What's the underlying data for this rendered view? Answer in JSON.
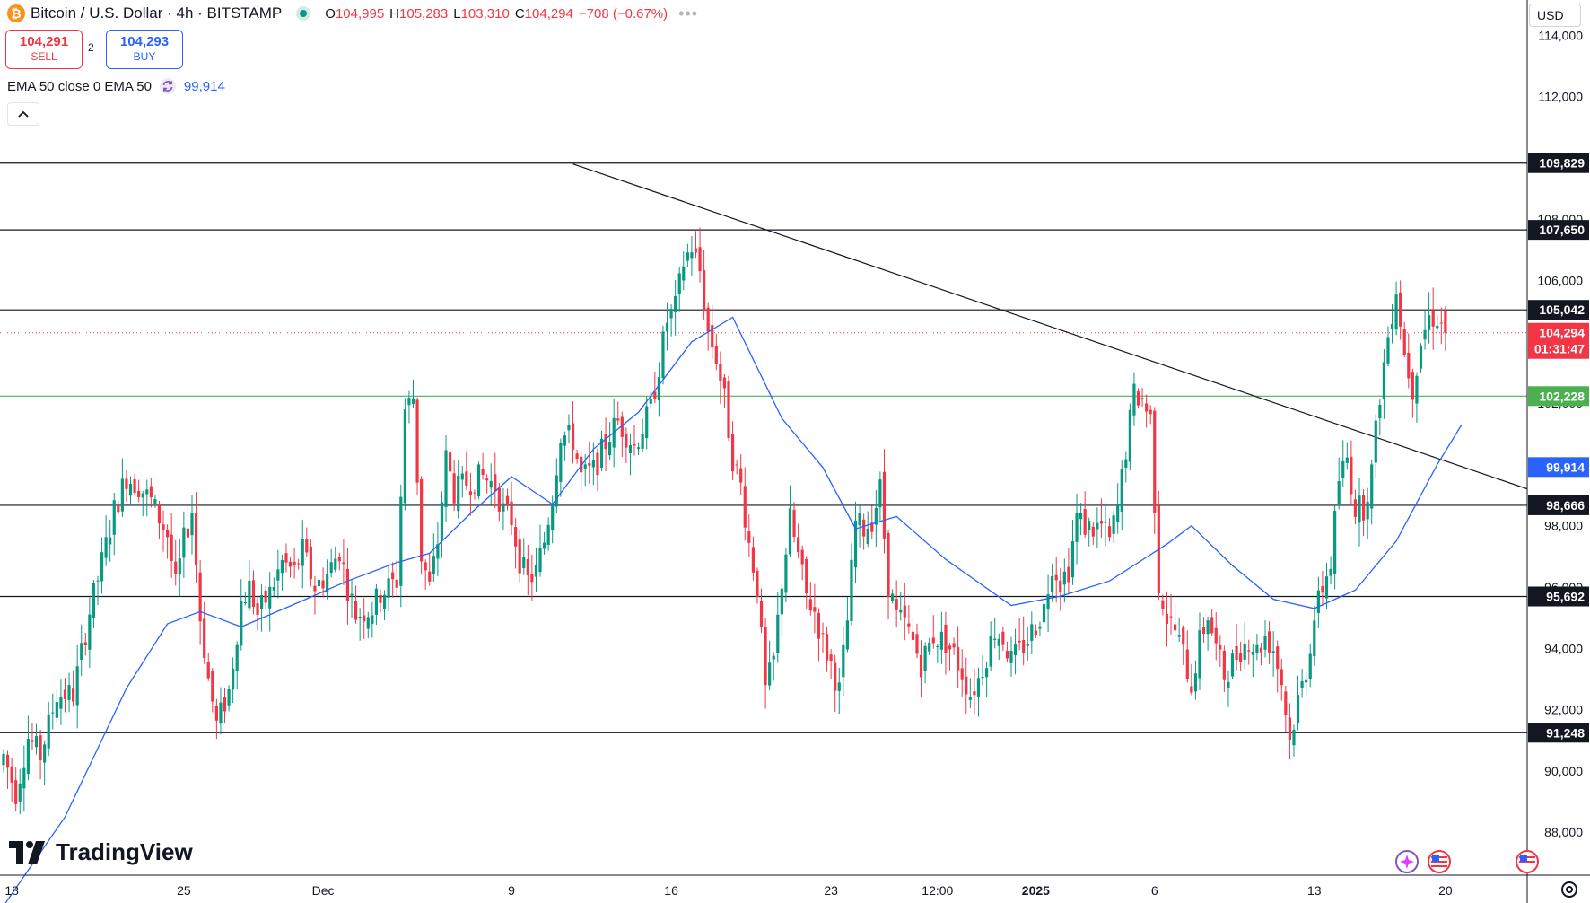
{
  "header": {
    "symbol": "Bitcoin / U.S. Dollar · 4h · BITSTAMP",
    "coin_glyph": "₿",
    "ohlc": [
      {
        "k": "O",
        "v": "104,995"
      },
      {
        "k": "H",
        "v": "105,283"
      },
      {
        "k": "L",
        "v": "103,310"
      },
      {
        "k": "C",
        "v": "104,294"
      }
    ],
    "change": "−708 (−0.67%)",
    "more": "•••"
  },
  "trade": {
    "sell_price": "104,291",
    "sell_label": "SELL",
    "spread": "2",
    "buy_price": "104,293",
    "buy_label": "BUY"
  },
  "indicator": {
    "label": "EMA 50 close 0 EMA 50",
    "value": "99,914"
  },
  "currency": "USD",
  "brand": "TradingView",
  "colors": {
    "up": "#089981",
    "down": "#f23645",
    "ema": "#2962ff",
    "support_green": "#4caf50"
  },
  "chart_data": {
    "type": "candlestick",
    "title": "Bitcoin / U.S. Dollar · 4h · BITSTAMP",
    "ylim": [
      86600,
      115150
    ],
    "y_ticks": [
      "88,000",
      "90,000",
      "92,000",
      "94,000",
      "96,000",
      "98,000",
      "100,000",
      "102,000",
      "104,000",
      "106,000",
      "108,000",
      "110,000",
      "112,000",
      "114,000"
    ],
    "x_labels": [
      {
        "label": "18",
        "bar": 2
      },
      {
        "label": "25",
        "bar": 44
      },
      {
        "label": "Dec",
        "bar": 78
      },
      {
        "label": "9",
        "bar": 124
      },
      {
        "label": "16",
        "bar": 163
      },
      {
        "label": "23",
        "bar": 202
      },
      {
        "label": "12:00",
        "bar": 228
      },
      {
        "label": "2025",
        "bar": 252
      },
      {
        "label": "6",
        "bar": 281
      },
      {
        "label": "13",
        "bar": 320
      },
      {
        "label": "20",
        "bar": 352
      }
    ],
    "levels": [
      {
        "value": 109829,
        "label": "109,829",
        "kind": "resistance"
      },
      {
        "value": 107650,
        "label": "107,650",
        "kind": "resistance"
      },
      {
        "value": 105042,
        "label": "105,042",
        "kind": "resistance"
      },
      {
        "value": 102228,
        "label": "102,228",
        "kind": "support"
      },
      {
        "value": 98666,
        "label": "98,666",
        "kind": "support"
      },
      {
        "value": 95692,
        "label": "95,692",
        "kind": "support"
      },
      {
        "value": 91248,
        "label": "91,248",
        "kind": "support"
      }
    ],
    "trendline": {
      "from": {
        "bar": 139,
        "value": 109800
      },
      "to": {
        "bar": 383,
        "value": 98700
      }
    },
    "last_price": {
      "value": 104294,
      "label": "104,294",
      "countdown": "01:31:47"
    },
    "ema": {
      "name": "EMA 50",
      "value": 99914,
      "label": "99,914",
      "path": [
        [
          0,
          85600
        ],
        [
          15,
          88500
        ],
        [
          30,
          92700
        ],
        [
          40,
          94800
        ],
        [
          48,
          95200
        ],
        [
          58,
          94700
        ],
        [
          72,
          95500
        ],
        [
          84,
          96200
        ],
        [
          96,
          96800
        ],
        [
          104,
          97100
        ],
        [
          114,
          98400
        ],
        [
          124,
          99600
        ],
        [
          134,
          98700
        ],
        [
          144,
          100500
        ],
        [
          155,
          101700
        ],
        [
          168,
          104000
        ],
        [
          178,
          104800
        ],
        [
          190,
          101500
        ],
        [
          200,
          99900
        ],
        [
          208,
          97900
        ],
        [
          218,
          98300
        ],
        [
          230,
          96900
        ],
        [
          246,
          95400
        ],
        [
          258,
          95700
        ],
        [
          270,
          96200
        ],
        [
          284,
          97400
        ],
        [
          290,
          98000
        ],
        [
          300,
          96700
        ],
        [
          310,
          95600
        ],
        [
          320,
          95300
        ],
        [
          330,
          95900
        ],
        [
          340,
          97500
        ],
        [
          350,
          100000
        ],
        [
          356,
          101300
        ]
      ]
    },
    "anchors": [
      [
        0,
        90500
      ],
      [
        3,
        89300
      ],
      [
        6,
        91100
      ],
      [
        9,
        90500
      ],
      [
        13,
        92500
      ],
      [
        17,
        92500
      ],
      [
        21,
        95200
      ],
      [
        24,
        96800
      ],
      [
        27,
        98500
      ],
      [
        30,
        99600
      ],
      [
        33,
        99300
      ],
      [
        36,
        98800
      ],
      [
        40,
        97700
      ],
      [
        42,
        96000
      ],
      [
        44,
        97500
      ],
      [
        46,
        98500
      ],
      [
        48,
        95000
      ],
      [
        50,
        93000
      ],
      [
        52,
        91500
      ],
      [
        55,
        92600
      ],
      [
        58,
        95500
      ],
      [
        60,
        96000
      ],
      [
        62,
        95100
      ],
      [
        65,
        95800
      ],
      [
        68,
        96800
      ],
      [
        71,
        96500
      ],
      [
        73,
        97200
      ],
      [
        76,
        96000
      ],
      [
        79,
        96400
      ],
      [
        82,
        97200
      ],
      [
        84,
        96000
      ],
      [
        86,
        95100
      ],
      [
        90,
        95300
      ],
      [
        92,
        95800
      ],
      [
        96,
        96200
      ],
      [
        98,
        101800
      ],
      [
        100,
        102200
      ],
      [
        102,
        97000
      ],
      [
        104,
        96000
      ],
      [
        106,
        97500
      ],
      [
        108,
        100200
      ],
      [
        110,
        99100
      ],
      [
        113,
        99400
      ],
      [
        117,
        99600
      ],
      [
        120,
        99300
      ],
      [
        122,
        98500
      ],
      [
        124,
        98200
      ],
      [
        126,
        96900
      ],
      [
        128,
        96200
      ],
      [
        130,
        96500
      ],
      [
        132,
        97500
      ],
      [
        134,
        99000
      ],
      [
        136,
        101000
      ],
      [
        139,
        100800
      ],
      [
        141,
        99600
      ],
      [
        144,
        99800
      ],
      [
        148,
        101000
      ],
      [
        150,
        101400
      ],
      [
        154,
        100600
      ],
      [
        158,
        101800
      ],
      [
        160,
        103200
      ],
      [
        162,
        104700
      ],
      [
        164,
        105100
      ],
      [
        166,
        106600
      ],
      [
        168,
        107100
      ],
      [
        170,
        106300
      ],
      [
        172,
        104300
      ],
      [
        174,
        103500
      ],
      [
        176,
        102100
      ],
      [
        178,
        100200
      ],
      [
        180,
        99300
      ],
      [
        182,
        97400
      ],
      [
        184,
        96000
      ],
      [
        186,
        92600
      ],
      [
        188,
        93600
      ],
      [
        190,
        96200
      ],
      [
        192,
        98200
      ],
      [
        194,
        97000
      ],
      [
        196,
        95700
      ],
      [
        198,
        95200
      ],
      [
        200,
        94200
      ],
      [
        202,
        93500
      ],
      [
        204,
        92600
      ],
      [
        206,
        94900
      ],
      [
        208,
        98100
      ],
      [
        210,
        97900
      ],
      [
        212,
        98200
      ],
      [
        214,
        99200
      ],
      [
        216,
        96100
      ],
      [
        218,
        95000
      ],
      [
        220,
        94800
      ],
      [
        222,
        94200
      ],
      [
        224,
        93500
      ],
      [
        227,
        94400
      ],
      [
        230,
        94200
      ],
      [
        232,
        93800
      ],
      [
        234,
        93200
      ],
      [
        236,
        92500
      ],
      [
        238,
        93000
      ],
      [
        240,
        93800
      ],
      [
        242,
        94600
      ],
      [
        244,
        94300
      ],
      [
        246,
        93600
      ],
      [
        248,
        93900
      ],
      [
        250,
        94300
      ],
      [
        254,
        95300
      ],
      [
        256,
        96800
      ],
      [
        258,
        96200
      ],
      [
        260,
        96600
      ],
      [
        262,
        98300
      ],
      [
        264,
        98000
      ],
      [
        266,
        97900
      ],
      [
        268,
        98000
      ],
      [
        270,
        97500
      ],
      [
        272,
        98600
      ],
      [
        274,
        100500
      ],
      [
        276,
        102300
      ],
      [
        278,
        102100
      ],
      [
        280,
        101500
      ],
      [
        282,
        96100
      ],
      [
        284,
        95000
      ],
      [
        286,
        94600
      ],
      [
        288,
        93800
      ],
      [
        290,
        92800
      ],
      [
        292,
        94200
      ],
      [
        294,
        95100
      ],
      [
        296,
        94000
      ],
      [
        298,
        93100
      ],
      [
        302,
        94000
      ],
      [
        304,
        94300
      ],
      [
        306,
        93900
      ],
      [
        308,
        94400
      ],
      [
        310,
        94000
      ],
      [
        312,
        92900
      ],
      [
        314,
        91000
      ],
      [
        316,
        92300
      ],
      [
        318,
        93300
      ],
      [
        320,
        95000
      ],
      [
        322,
        96000
      ],
      [
        324,
        96800
      ],
      [
        326,
        99500
      ],
      [
        328,
        100200
      ],
      [
        330,
        98600
      ],
      [
        332,
        98600
      ],
      [
        334,
        99800
      ],
      [
        336,
        102300
      ],
      [
        338,
        104200
      ],
      [
        340,
        105800
      ],
      [
        342,
        103600
      ],
      [
        344,
        102500
      ],
      [
        346,
        104000
      ],
      [
        348,
        104800
      ],
      [
        350,
        104800
      ],
      [
        352,
        104294
      ]
    ]
  }
}
